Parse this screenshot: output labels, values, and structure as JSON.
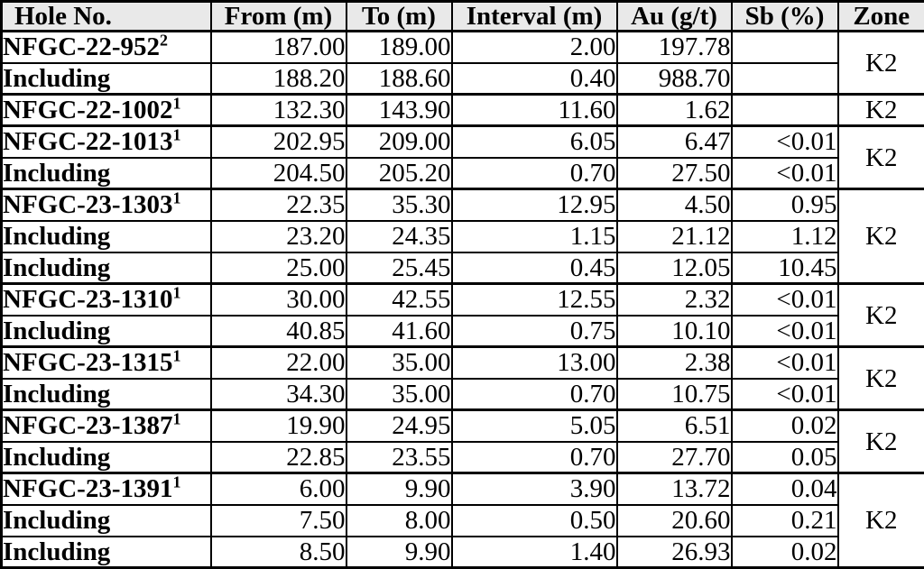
{
  "colors": {
    "header_bg": "#e9e9e9",
    "border": "#000000",
    "text": "#000000",
    "row_bg": "#ffffff"
  },
  "table": {
    "columns": [
      {
        "key": "hole",
        "label": "Hole No."
      },
      {
        "key": "from",
        "label": "From (m)"
      },
      {
        "key": "to",
        "label": "To (m)"
      },
      {
        "key": "interval",
        "label": "Interval (m)"
      },
      {
        "key": "au",
        "label": "Au (g/t)"
      },
      {
        "key": "sb",
        "label": "Sb (%)"
      },
      {
        "key": "zone",
        "label": "Zone"
      }
    ],
    "groups": [
      {
        "zone": "K2",
        "rows": [
          {
            "label": "NFGC-22-952",
            "sup": "2",
            "from": "187.00",
            "to": "189.00",
            "interval": "2.00",
            "au": "197.78",
            "sb": ""
          },
          {
            "label": "Including",
            "sup": "",
            "from": "188.20",
            "to": "188.60",
            "interval": "0.40",
            "au": "988.70",
            "sb": ""
          }
        ]
      },
      {
        "zone": "K2",
        "rows": [
          {
            "label": "NFGC-22-1002",
            "sup": "1",
            "from": "132.30",
            "to": "143.90",
            "interval": "11.60",
            "au": "1.62",
            "sb": ""
          }
        ]
      },
      {
        "zone": "K2",
        "rows": [
          {
            "label": "NFGC-22-1013",
            "sup": "1",
            "from": "202.95",
            "to": "209.00",
            "interval": "6.05",
            "au": "6.47",
            "sb": "<0.01"
          },
          {
            "label": "Including",
            "sup": "",
            "from": "204.50",
            "to": "205.20",
            "interval": "0.70",
            "au": "27.50",
            "sb": "<0.01"
          }
        ]
      },
      {
        "zone": "K2",
        "rows": [
          {
            "label": "NFGC-23-1303",
            "sup": "1",
            "from": "22.35",
            "to": "35.30",
            "interval": "12.95",
            "au": "4.50",
            "sb": "0.95"
          },
          {
            "label": "Including",
            "sup": "",
            "from": "23.20",
            "to": "24.35",
            "interval": "1.15",
            "au": "21.12",
            "sb": "1.12"
          },
          {
            "label": "Including",
            "sup": "",
            "from": "25.00",
            "to": "25.45",
            "interval": "0.45",
            "au": "12.05",
            "sb": "10.45"
          }
        ]
      },
      {
        "zone": "K2",
        "rows": [
          {
            "label": "NFGC-23-1310",
            "sup": "1",
            "from": "30.00",
            "to": "42.55",
            "interval": "12.55",
            "au": "2.32",
            "sb": "<0.01"
          },
          {
            "label": "Including",
            "sup": "",
            "from": "40.85",
            "to": "41.60",
            "interval": "0.75",
            "au": "10.10",
            "sb": "<0.01"
          }
        ]
      },
      {
        "zone": "K2",
        "rows": [
          {
            "label": "NFGC-23-1315",
            "sup": "1",
            "from": "22.00",
            "to": "35.00",
            "interval": "13.00",
            "au": "2.38",
            "sb": "<0.01"
          },
          {
            "label": "Including",
            "sup": "",
            "from": "34.30",
            "to": "35.00",
            "interval": "0.70",
            "au": "10.75",
            "sb": "<0.01"
          }
        ]
      },
      {
        "zone": "K2",
        "rows": [
          {
            "label": "NFGC-23-1387",
            "sup": "1",
            "from": "19.90",
            "to": "24.95",
            "interval": "5.05",
            "au": "6.51",
            "sb": "0.02"
          },
          {
            "label": "Including",
            "sup": "",
            "from": "22.85",
            "to": "23.55",
            "interval": "0.70",
            "au": "27.70",
            "sb": "0.05"
          }
        ]
      },
      {
        "zone": "K2",
        "rows": [
          {
            "label": "NFGC-23-1391",
            "sup": "1",
            "from": "6.00",
            "to": "9.90",
            "interval": "3.90",
            "au": "13.72",
            "sb": "0.04"
          },
          {
            "label": "Including",
            "sup": "",
            "from": "7.50",
            "to": "8.00",
            "interval": "0.50",
            "au": "20.60",
            "sb": "0.21"
          },
          {
            "label": "Including",
            "sup": "",
            "from": "8.50",
            "to": "9.90",
            "interval": "1.40",
            "au": "26.93",
            "sb": "0.02"
          }
        ]
      }
    ]
  },
  "chart_data": {
    "type": "table",
    "columns": [
      "Hole No.",
      "From (m)",
      "To (m)",
      "Interval (m)",
      "Au (g/t)",
      "Sb (%)",
      "Zone"
    ],
    "rows": [
      [
        "NFGC-22-952²",
        "187.00",
        "189.00",
        "2.00",
        "197.78",
        "",
        "K2"
      ],
      [
        "Including",
        "188.20",
        "188.60",
        "0.40",
        "988.70",
        "",
        "K2"
      ],
      [
        "NFGC-22-1002¹",
        "132.30",
        "143.90",
        "11.60",
        "1.62",
        "",
        "K2"
      ],
      [
        "NFGC-22-1013¹",
        "202.95",
        "209.00",
        "6.05",
        "6.47",
        "<0.01",
        "K2"
      ],
      [
        "Including",
        "204.50",
        "205.20",
        "0.70",
        "27.50",
        "<0.01",
        "K2"
      ],
      [
        "NFGC-23-1303¹",
        "22.35",
        "35.30",
        "12.95",
        "4.50",
        "0.95",
        "K2"
      ],
      [
        "Including",
        "23.20",
        "24.35",
        "1.15",
        "21.12",
        "1.12",
        "K2"
      ],
      [
        "Including",
        "25.00",
        "25.45",
        "0.45",
        "12.05",
        "10.45",
        "K2"
      ],
      [
        "NFGC-23-1310¹",
        "30.00",
        "42.55",
        "12.55",
        "2.32",
        "<0.01",
        "K2"
      ],
      [
        "Including",
        "40.85",
        "41.60",
        "0.75",
        "10.10",
        "<0.01",
        "K2"
      ],
      [
        "NFGC-23-1315¹",
        "22.00",
        "35.00",
        "13.00",
        "2.38",
        "<0.01",
        "K2"
      ],
      [
        "Including",
        "34.30",
        "35.00",
        "0.70",
        "10.75",
        "<0.01",
        "K2"
      ],
      [
        "NFGC-23-1387¹",
        "19.90",
        "24.95",
        "5.05",
        "6.51",
        "0.02",
        "K2"
      ],
      [
        "Including",
        "22.85",
        "23.55",
        "0.70",
        "27.70",
        "0.05",
        "K2"
      ],
      [
        "NFGC-23-1391¹",
        "6.00",
        "9.90",
        "3.90",
        "13.72",
        "0.04",
        "K2"
      ],
      [
        "Including",
        "7.50",
        "8.00",
        "0.50",
        "20.60",
        "0.21",
        "K2"
      ],
      [
        "Including",
        "8.50",
        "9.90",
        "1.40",
        "26.93",
        "0.02",
        "K2"
      ]
    ]
  }
}
